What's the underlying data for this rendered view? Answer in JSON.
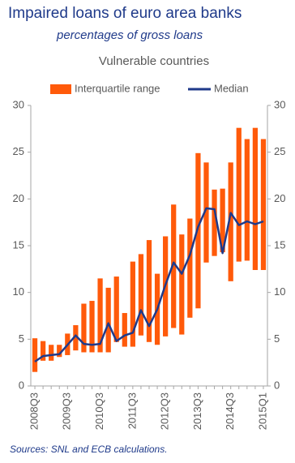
{
  "chart_data": {
    "type": "range_bar_line",
    "title": "Impaired loans of euro area banks",
    "subtitle": "percentages of gross loans",
    "panel_title": "Vulnerable countries",
    "source": "Sources: SNL and ECB calculations.",
    "categories": [
      "2008Q3",
      null,
      null,
      null,
      "2009Q3",
      null,
      null,
      null,
      "2010Q3",
      null,
      null,
      null,
      "2011Q3",
      null,
      null,
      null,
      "2012Q3",
      null,
      null,
      null,
      "2013Q3",
      null,
      null,
      null,
      "2014Q3",
      null,
      null,
      null,
      "2015Q1"
    ],
    "series": [
      {
        "name": "Interquartile range",
        "color": "#ff5a0a",
        "low": [
          1.5,
          2.7,
          2.7,
          3.1,
          3.3,
          3.8,
          3.6,
          3.6,
          3.6,
          3.6,
          4.7,
          4.2,
          4.2,
          5.4,
          4.7,
          4.4,
          5.3,
          6.2,
          5.5,
          7.3,
          8.3,
          13.2,
          13.9,
          14.3,
          11.2,
          13.3,
          13.4,
          12.4,
          12.4
        ],
        "high": [
          5.1,
          4.8,
          4.4,
          4.4,
          5.6,
          6.5,
          8.8,
          9.1,
          11.5,
          10.5,
          11.7,
          7.8,
          13.3,
          14.1,
          15.6,
          12.0,
          16.0,
          19.4,
          16.2,
          17.9,
          24.9,
          23.9,
          21.0,
          21.1,
          23.9,
          27.6,
          26.4,
          27.6,
          26.4
        ]
      },
      {
        "name": "Median",
        "color": "#1f3a8a",
        "values": [
          2.6,
          3.2,
          3.3,
          3.4,
          4.4,
          5.4,
          4.5,
          4.4,
          4.5,
          6.7,
          4.8,
          5.4,
          5.7,
          8.1,
          6.4,
          8.2,
          10.8,
          13.2,
          12.0,
          14.0,
          17.0,
          19.0,
          18.9,
          14.2,
          18.5,
          17.2,
          17.6,
          17.3,
          17.6
        ]
      }
    ],
    "ylim": [
      0,
      30
    ],
    "yticks": [
      0,
      5,
      10,
      15,
      20,
      25,
      30
    ],
    "y2lim": [
      0,
      30
    ],
    "y2ticks": [
      0,
      5,
      10,
      15,
      20,
      25,
      30
    ],
    "grid": false
  }
}
